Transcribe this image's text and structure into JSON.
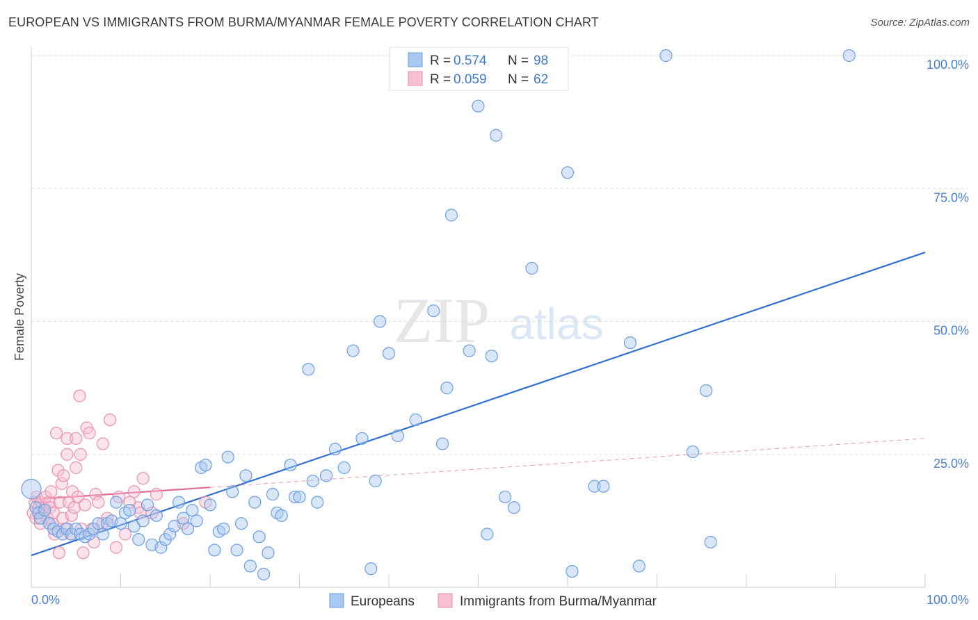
{
  "title": "EUROPEAN VS IMMIGRANTS FROM BURMA/MYANMAR FEMALE POVERTY CORRELATION CHART",
  "source": "Source: ZipAtlas.com",
  "watermark": {
    "zip": "ZIP",
    "atlas": "atlas"
  },
  "legend_top": [
    {
      "r_label": "R =",
      "r_value": "0.574",
      "n_label": "N =",
      "n_value": "98",
      "color": "#a8c8f0",
      "stroke": "#6a9ee0"
    },
    {
      "r_label": "R =",
      "r_value": "0.059",
      "n_label": "N =",
      "n_value": "62",
      "color": "#f7c0d2",
      "stroke": "#ea8fae"
    }
  ],
  "legend_bottom": [
    {
      "label": "Europeans",
      "color": "#a8c8f0",
      "stroke": "#6a9ee0"
    },
    {
      "label": "Immigrants from Burma/Myanmar",
      "color": "#f7c0d2",
      "stroke": "#ea8fae"
    }
  ],
  "chart_data": {
    "type": "scatter",
    "title": "EUROPEAN VS IMMIGRANTS FROM BURMA/MYANMAR FEMALE POVERTY CORRELATION CHART",
    "xlabel": "",
    "ylabel": "Female Poverty",
    "xlim": [
      0,
      100
    ],
    "ylim": [
      0,
      100
    ],
    "x_tick_labels": [
      "0.0%",
      "100.0%"
    ],
    "y_ticks": [
      25,
      50,
      75,
      100
    ],
    "y_tick_labels": [
      "25.0%",
      "50.0%",
      "75.0%",
      "100.0%"
    ],
    "grid": true,
    "series": [
      {
        "name": "Europeans",
        "color": "#6a9ee0",
        "fill": "#a8c8f0",
        "trend": {
          "x": [
            0,
            100
          ],
          "y": [
            6,
            63
          ]
        },
        "points": [
          [
            0,
            18.5
          ],
          [
            0.5,
            15
          ],
          [
            0.8,
            14
          ],
          [
            1,
            13
          ],
          [
            1.5,
            14.5
          ],
          [
            2,
            12
          ],
          [
            2.5,
            11
          ],
          [
            3,
            10.5
          ],
          [
            3.5,
            10
          ],
          [
            4,
            11
          ],
          [
            4.5,
            10
          ],
          [
            5,
            11
          ],
          [
            5.5,
            10
          ],
          [
            6,
            9.5
          ],
          [
            6.5,
            10
          ],
          [
            7,
            11
          ],
          [
            7.5,
            12
          ],
          [
            8,
            10
          ],
          [
            8.5,
            12
          ],
          [
            9,
            12.5
          ],
          [
            9.5,
            16
          ],
          [
            10,
            12
          ],
          [
            10.5,
            14
          ],
          [
            11,
            14.5
          ],
          [
            11.5,
            11.5
          ],
          [
            12,
            9
          ],
          [
            12.5,
            12.5
          ],
          [
            13,
            15.5
          ],
          [
            13.5,
            8
          ],
          [
            14,
            13.5
          ],
          [
            14.5,
            7.5
          ],
          [
            15,
            9
          ],
          [
            15.5,
            10
          ],
          [
            16,
            11.5
          ],
          [
            16.5,
            16
          ],
          [
            17,
            13
          ],
          [
            17.5,
            11
          ],
          [
            18,
            14.5
          ],
          [
            18.5,
            12.5
          ],
          [
            19,
            22.5
          ],
          [
            19.5,
            23
          ],
          [
            20,
            15.5
          ],
          [
            20.5,
            7
          ],
          [
            21,
            10.5
          ],
          [
            21.5,
            11
          ],
          [
            22,
            24.5
          ],
          [
            22.5,
            18
          ],
          [
            23,
            7
          ],
          [
            23.5,
            12
          ],
          [
            24,
            21
          ],
          [
            24.5,
            4
          ],
          [
            25,
            16
          ],
          [
            25.5,
            9.5
          ],
          [
            26,
            2.5
          ],
          [
            26.5,
            6.5
          ],
          [
            27,
            17.5
          ],
          [
            27.5,
            14
          ],
          [
            28,
            13.5
          ],
          [
            29,
            23
          ],
          [
            29.5,
            17
          ],
          [
            30,
            17
          ],
          [
            31,
            41
          ],
          [
            31.5,
            20
          ],
          [
            32,
            16
          ],
          [
            33,
            21
          ],
          [
            34,
            26
          ],
          [
            35,
            22.5
          ],
          [
            36,
            44.5
          ],
          [
            37,
            28
          ],
          [
            38,
            3.5
          ],
          [
            38.5,
            20
          ],
          [
            39,
            50
          ],
          [
            40,
            44
          ],
          [
            41,
            28.5
          ],
          [
            43,
            31.5
          ],
          [
            45,
            52
          ],
          [
            46,
            27
          ],
          [
            46.5,
            37.5
          ],
          [
            47,
            70
          ],
          [
            49,
            44.5
          ],
          [
            50,
            90.5
          ],
          [
            51,
            10
          ],
          [
            51.5,
            43.5
          ],
          [
            52,
            85
          ],
          [
            53,
            17
          ],
          [
            54,
            15
          ],
          [
            56,
            60
          ],
          [
            60,
            78
          ],
          [
            60.5,
            3
          ],
          [
            63,
            19
          ],
          [
            64,
            19
          ],
          [
            67,
            46
          ],
          [
            68,
            4
          ],
          [
            71,
            100
          ],
          [
            74,
            25.5
          ],
          [
            75.5,
            37
          ],
          [
            76,
            8.5
          ],
          [
            91.5,
            100
          ]
        ]
      },
      {
        "name": "Immigrants from Burma/Myanmar",
        "color": "#ea8fae",
        "fill": "#f7c0d2",
        "trend": {
          "x": [
            0,
            20
          ],
          "y": [
            16.5,
            18.8
          ]
        },
        "trend_dashed": {
          "x": [
            20,
            100
          ],
          "y": [
            18.8,
            28
          ]
        },
        "points": [
          [
            0.2,
            14
          ],
          [
            0.4,
            16
          ],
          [
            0.5,
            13
          ],
          [
            0.6,
            17
          ],
          [
            0.8,
            15
          ],
          [
            1,
            12
          ],
          [
            1.1,
            16
          ],
          [
            1.3,
            14
          ],
          [
            1.5,
            15
          ],
          [
            1.6,
            17
          ],
          [
            1.8,
            13
          ],
          [
            2,
            16
          ],
          [
            2.1,
            15
          ],
          [
            2.2,
            18
          ],
          [
            2.4,
            12
          ],
          [
            2.5,
            14
          ],
          [
            2.6,
            10
          ],
          [
            2.8,
            29
          ],
          [
            3,
            22
          ],
          [
            3.1,
            6.5
          ],
          [
            3.2,
            16
          ],
          [
            3.4,
            19.5
          ],
          [
            3.5,
            13
          ],
          [
            3.6,
            21
          ],
          [
            3.8,
            11
          ],
          [
            4,
            28
          ],
          [
            4,
            25
          ],
          [
            4.2,
            16
          ],
          [
            4.4,
            10
          ],
          [
            4.5,
            13.5
          ],
          [
            4.6,
            18
          ],
          [
            4.8,
            15
          ],
          [
            5,
            28
          ],
          [
            5,
            22.5
          ],
          [
            5.2,
            17
          ],
          [
            5.4,
            36
          ],
          [
            5.5,
            25
          ],
          [
            5.6,
            11
          ],
          [
            5.8,
            6.5
          ],
          [
            6,
            15.5
          ],
          [
            6.2,
            30
          ],
          [
            6.5,
            29
          ],
          [
            6.8,
            11
          ],
          [
            7,
            8.5
          ],
          [
            7.2,
            17.5
          ],
          [
            7.5,
            16
          ],
          [
            8,
            27
          ],
          [
            8,
            12
          ],
          [
            8.5,
            13
          ],
          [
            8.8,
            31.5
          ],
          [
            9.5,
            7.5
          ],
          [
            9.8,
            17
          ],
          [
            10.5,
            10
          ],
          [
            11,
            16
          ],
          [
            11.5,
            18
          ],
          [
            12,
            15
          ],
          [
            12.2,
            14
          ],
          [
            12.5,
            20.5
          ],
          [
            13.5,
            14
          ],
          [
            14,
            17.5
          ],
          [
            17,
            12
          ],
          [
            19.5,
            16
          ]
        ]
      }
    ]
  }
}
